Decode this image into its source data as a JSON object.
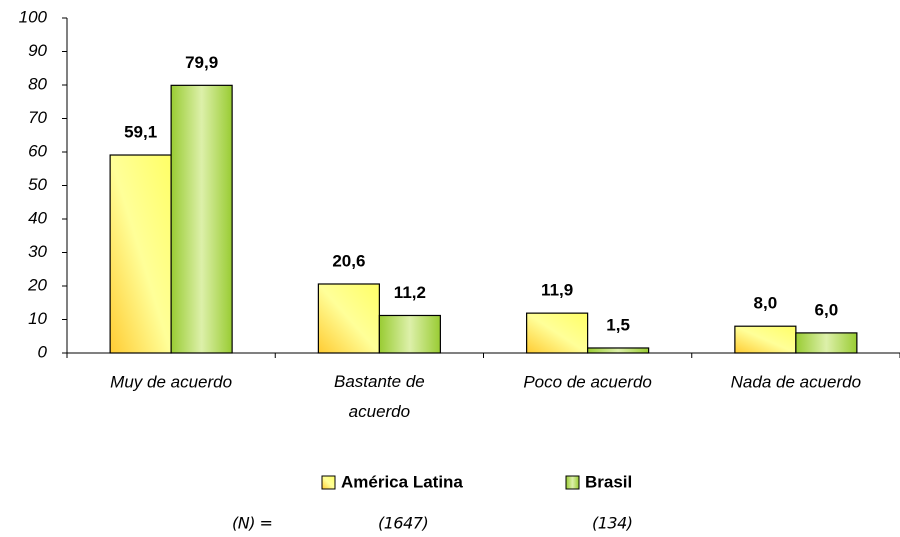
{
  "chart_data": {
    "type": "bar",
    "categories": [
      "Muy de acuerdo",
      "Bastante de acuerdo",
      "Poco de acuerdo",
      "Nada de acuerdo"
    ],
    "series": [
      {
        "name": "América Latina",
        "color": "#ffff99",
        "values": [
          59.1,
          20.6,
          11.9,
          8.0
        ],
        "value_labels": [
          "59,1",
          "20,6",
          "11,9",
          "8,0"
        ]
      },
      {
        "name": "Brasil",
        "color": "#99cc33",
        "values": [
          79.9,
          11.2,
          1.5,
          6.0
        ],
        "value_labels": [
          "79,9",
          "11,2",
          "1,5",
          "6,0"
        ]
      }
    ],
    "ylim": [
      0,
      100
    ],
    "yticks": [
      0,
      10,
      20,
      30,
      40,
      50,
      60,
      70,
      80,
      90,
      100
    ],
    "grid": false,
    "legend": "bottom",
    "n_label": "(N) =",
    "n_values": [
      "(1647)",
      "(134)"
    ]
  }
}
